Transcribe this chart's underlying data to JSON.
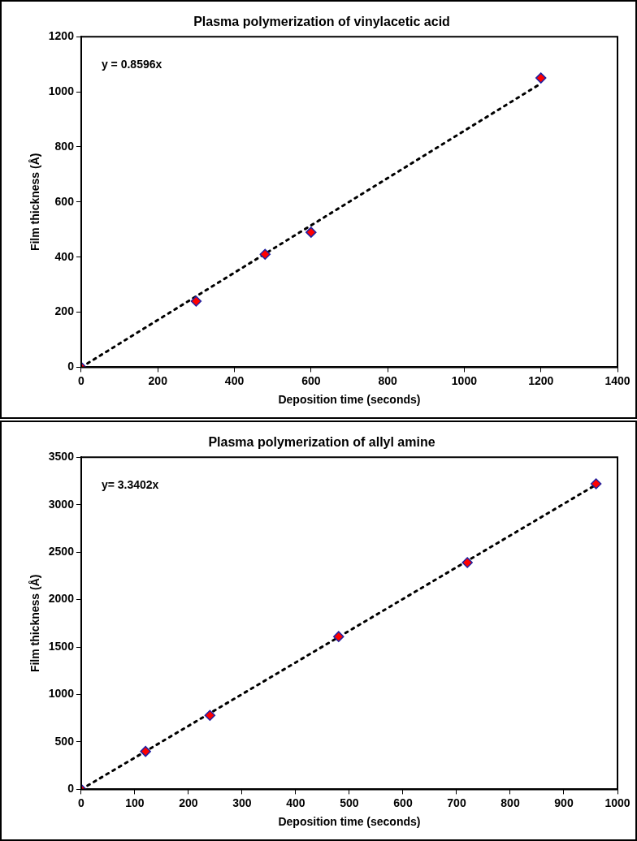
{
  "chart_data": [
    {
      "type": "scatter",
      "title": "Plasma polymerization of vinylacetic acid",
      "xlabel": "Deposition time (seconds)",
      "ylabel": "Film thickness (Å)",
      "x": [
        0,
        300,
        480,
        600,
        1200
      ],
      "series": [
        {
          "type": "scatter",
          "color": "#ff0000",
          "marker": "diamond",
          "values": [
            0,
            240,
            410,
            490,
            1050
          ]
        },
        {
          "type": "line",
          "color": "#000000",
          "marker": "none",
          "line_style": "dotted",
          "x": [
            0,
            1200
          ],
          "values": [
            0,
            1030
          ]
        }
      ],
      "xlim": [
        0,
        1400
      ],
      "xticks": [
        0,
        200,
        400,
        600,
        800,
        1000,
        1200,
        1400
      ],
      "ylim": [
        0,
        1200
      ],
      "yticks": [
        0,
        200,
        400,
        600,
        800,
        1000,
        1200
      ],
      "annotations": [
        "y = 0.8596x"
      ],
      "grid": false,
      "legend": false
    },
    {
      "type": "scatter",
      "title": "Plasma polymerization of allyl amine",
      "xlabel": "Deposition time (seconds)",
      "ylabel": "Film thickness (Å)",
      "x": [
        0,
        120,
        240,
        480,
        720,
        960
      ],
      "series": [
        {
          "type": "scatter",
          "color": "#ff0000",
          "marker": "diamond",
          "values": [
            0,
            400,
            780,
            1610,
            2390,
            3220
          ]
        },
        {
          "type": "line",
          "color": "#000000",
          "marker": "none",
          "line_style": "dotted",
          "x": [
            0,
            960
          ],
          "values": [
            0,
            3210
          ]
        }
      ],
      "xlim": [
        0,
        1000
      ],
      "xticks": [
        0,
        100,
        200,
        300,
        400,
        500,
        600,
        700,
        800,
        900,
        1000
      ],
      "ylim": [
        0,
        3500
      ],
      "yticks": [
        0,
        500,
        1000,
        1500,
        2000,
        2500,
        3000,
        3500
      ],
      "annotations": [
        "y= 3.3402x"
      ],
      "grid": false,
      "legend": false
    }
  ]
}
